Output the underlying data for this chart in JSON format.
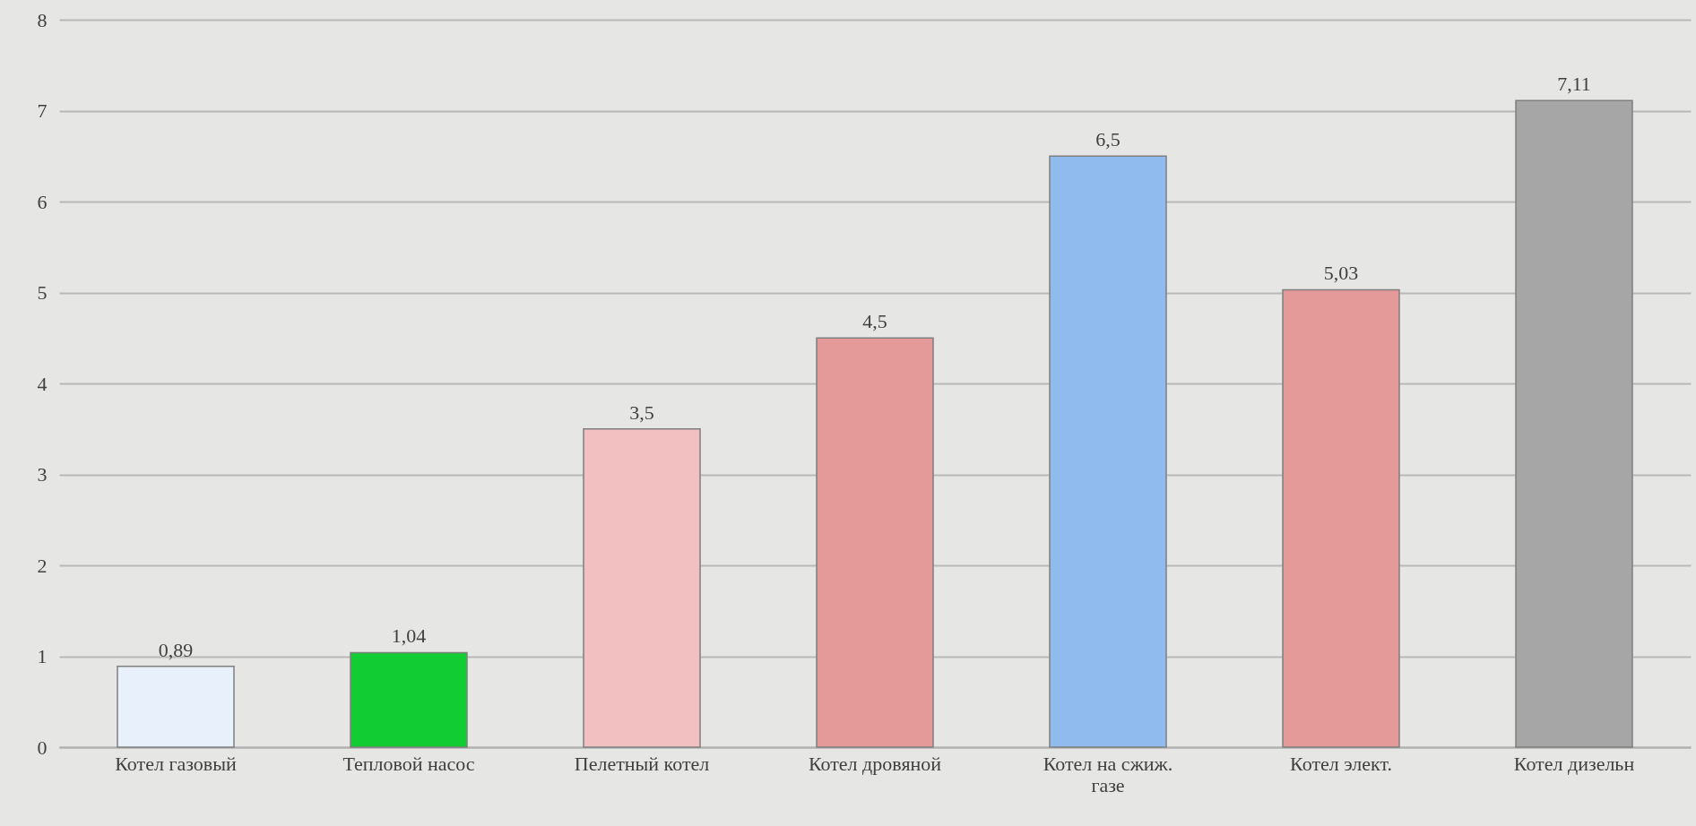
{
  "chart_data": {
    "type": "bar",
    "categories": [
      "Котел газовый",
      "Тепловой насос",
      "Пелетный котел",
      "Котел дровяной",
      "Котел на сжиж. газе",
      "Котел элект.",
      "Котел дизельн"
    ],
    "values": [
      0.89,
      1.04,
      3.5,
      4.5,
      6.5,
      5.03,
      7.11
    ],
    "colors": [
      "#e8f1fb",
      "#12cc33",
      "#f2c0c0",
      "#e39a98",
      "#8fbbee",
      "#e39a98",
      "#a6a6a6"
    ],
    "ylim": [
      0,
      8
    ],
    "yticks": [
      0,
      1,
      2,
      3,
      4,
      5,
      6,
      7,
      8
    ],
    "value_labels": [
      "0,89",
      "1,04",
      "3,5",
      "4,5",
      "6,5",
      "5,03",
      "7,11"
    ],
    "grid": "y"
  }
}
